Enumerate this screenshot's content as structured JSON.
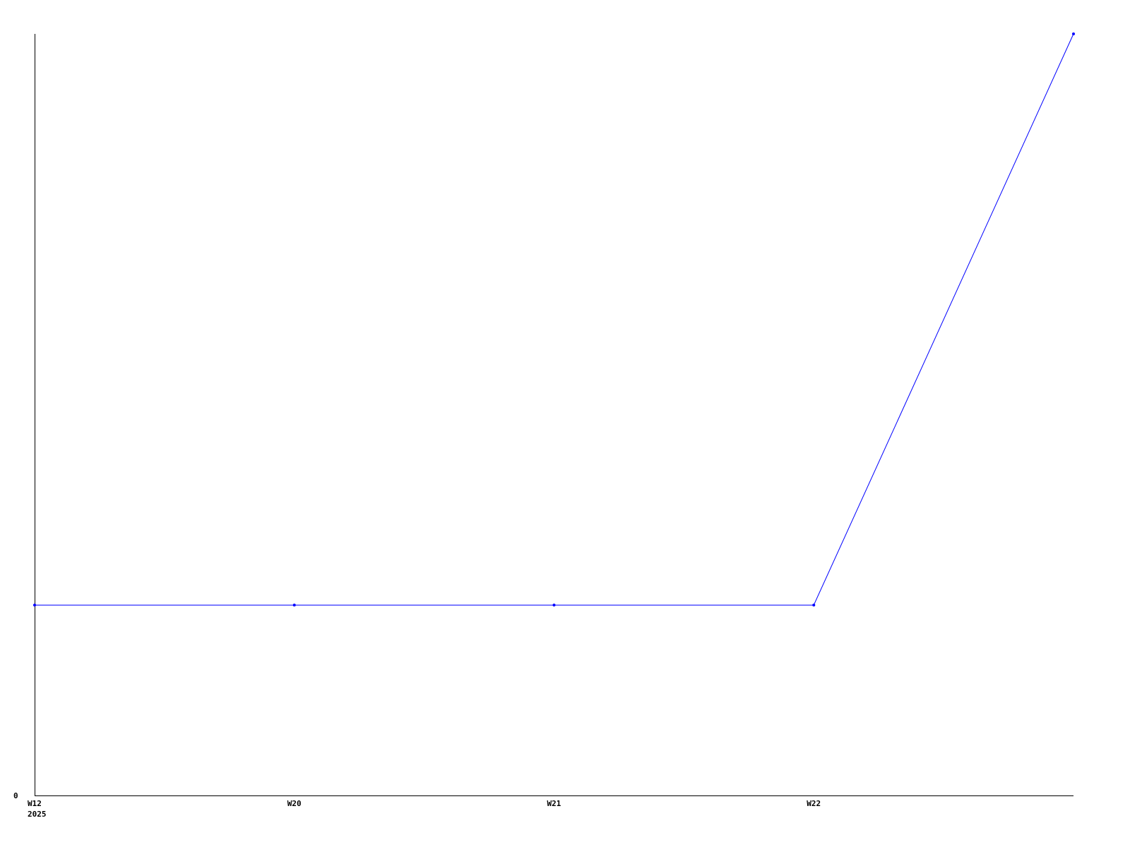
{
  "chart_data": {
    "type": "line",
    "title": "",
    "xlabel": "",
    "ylabel": "",
    "categories": [
      "W12",
      "W20",
      "W21",
      "W22",
      ""
    ],
    "x_sublabels": [
      "2025",
      "",
      "",
      "",
      ""
    ],
    "series": [
      {
        "values": [
          1,
          1,
          1,
          1,
          4
        ],
        "color": "#0000ff"
      }
    ],
    "y_tick_labels": [
      "0"
    ],
    "ylim": [
      0,
      4
    ],
    "grid": false,
    "legend": "none",
    "axis_color": "#000000"
  }
}
